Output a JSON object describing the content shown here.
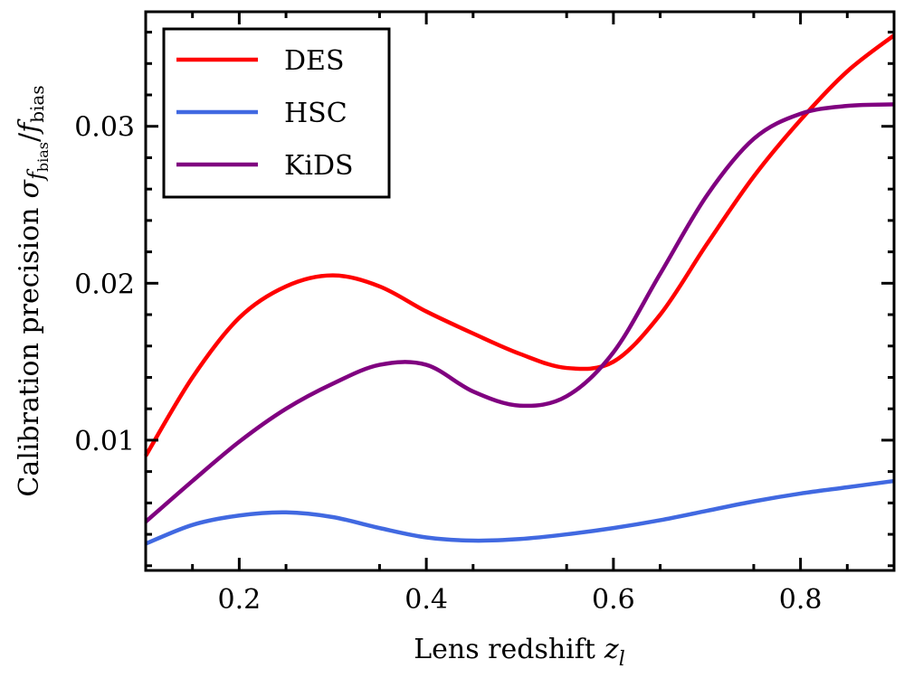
{
  "chart_data": {
    "type": "line",
    "xlabel": "Lens redshift",
    "xlabel_symbol": "z",
    "xlabel_subscript": "l",
    "ylabel": "Calibration precision",
    "ylabel_symbol_sigma": "σ",
    "ylabel_symbol_f": "f",
    "ylabel_subscript": "bias",
    "ylabel_divider": "/",
    "xlim": [
      0.1,
      0.9
    ],
    "ylim": [
      0.0017,
      0.0373
    ],
    "xticks": [
      0.2,
      0.4,
      0.6,
      0.8
    ],
    "xtick_labels": [
      "0.2",
      "0.4",
      "0.6",
      "0.8"
    ],
    "yticks": [
      0.01,
      0.02,
      0.03
    ],
    "ytick_labels": [
      "0.01",
      "0.02",
      "0.03"
    ],
    "legend_position": "top-left",
    "grid": false,
    "series": [
      {
        "name": "DES",
        "color": "#ff0000",
        "x": [
          0.1,
          0.15,
          0.2,
          0.25,
          0.3,
          0.35,
          0.4,
          0.45,
          0.5,
          0.55,
          0.6,
          0.65,
          0.7,
          0.75,
          0.8,
          0.85,
          0.9
        ],
        "y": [
          0.009,
          0.014,
          0.0178,
          0.0198,
          0.0205,
          0.0198,
          0.0182,
          0.0168,
          0.0155,
          0.0146,
          0.015,
          0.018,
          0.0225,
          0.0268,
          0.0304,
          0.0335,
          0.0358
        ]
      },
      {
        "name": "HSC",
        "color": "#4169e1",
        "x": [
          0.1,
          0.15,
          0.2,
          0.25,
          0.3,
          0.35,
          0.4,
          0.45,
          0.5,
          0.55,
          0.6,
          0.65,
          0.7,
          0.75,
          0.8,
          0.85,
          0.9
        ],
        "y": [
          0.0034,
          0.0046,
          0.0052,
          0.0054,
          0.0051,
          0.0044,
          0.0038,
          0.0036,
          0.0037,
          0.004,
          0.0044,
          0.0049,
          0.0055,
          0.0061,
          0.0066,
          0.007,
          0.0074
        ]
      },
      {
        "name": "KiDS",
        "color": "#800080",
        "x": [
          0.1,
          0.15,
          0.2,
          0.25,
          0.3,
          0.35,
          0.4,
          0.45,
          0.5,
          0.55,
          0.6,
          0.65,
          0.7,
          0.75,
          0.8,
          0.85,
          0.9
        ],
        "y": [
          0.0048,
          0.0074,
          0.0099,
          0.012,
          0.0136,
          0.0148,
          0.0148,
          0.0131,
          0.0122,
          0.0128,
          0.0156,
          0.0206,
          0.0256,
          0.0292,
          0.0308,
          0.0313,
          0.0314
        ]
      }
    ]
  }
}
